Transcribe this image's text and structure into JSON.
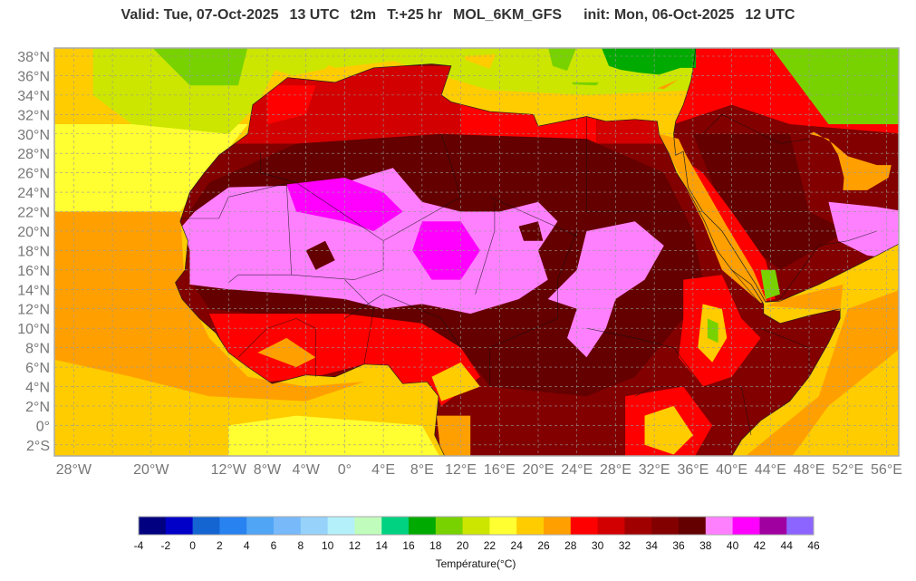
{
  "header": {
    "valid": "Valid: Tue, 07-Oct-2025",
    "hour": "13 UTC",
    "variable": "t2m",
    "lead": "T:+25 hr",
    "model": "MOL_6KM_GFS",
    "init": "init: Mon, 06-Oct-2025",
    "init_hour": "12 UTC"
  },
  "map": {
    "region": "North Africa and Arabia",
    "lat_ticks": [
      {
        "value": 38,
        "label": "38°N"
      },
      {
        "value": 36,
        "label": "36°N"
      },
      {
        "value": 34,
        "label": "34°N"
      },
      {
        "value": 32,
        "label": "32°N"
      },
      {
        "value": 30,
        "label": "30°N"
      },
      {
        "value": 28,
        "label": "28°N"
      },
      {
        "value": 26,
        "label": "26°N"
      },
      {
        "value": 24,
        "label": "24°N"
      },
      {
        "value": 22,
        "label": "22°N"
      },
      {
        "value": 20,
        "label": "20°N"
      },
      {
        "value": 18,
        "label": "18°N"
      },
      {
        "value": 16,
        "label": "16°N"
      },
      {
        "value": 14,
        "label": "14°N"
      },
      {
        "value": 12,
        "label": "12°N"
      },
      {
        "value": 10,
        "label": "10°N"
      },
      {
        "value": 8,
        "label": "8°N"
      },
      {
        "value": 6,
        "label": "6°N"
      },
      {
        "value": 4,
        "label": "4°N"
      },
      {
        "value": 2,
        "label": "2°N"
      },
      {
        "value": 0,
        "label": "0°"
      },
      {
        "value": -2,
        "label": "2°S"
      }
    ],
    "lon_ticks": [
      {
        "value": -28,
        "label": "28°W"
      },
      {
        "value": -20,
        "label": "20°W"
      },
      {
        "value": -12,
        "label": "12°W"
      },
      {
        "value": -8,
        "label": "8°W"
      },
      {
        "value": -4,
        "label": "4°W"
      },
      {
        "value": 0,
        "label": "0°"
      },
      {
        "value": 4,
        "label": "4°E"
      },
      {
        "value": 8,
        "label": "8°E"
      },
      {
        "value": 12,
        "label": "12°E"
      },
      {
        "value": 16,
        "label": "16°E"
      },
      {
        "value": 20,
        "label": "20°E"
      },
      {
        "value": 24,
        "label": "24°E"
      },
      {
        "value": 28,
        "label": "28°E"
      },
      {
        "value": 32,
        "label": "32°E"
      },
      {
        "value": 36,
        "label": "36°E"
      },
      {
        "value": 40,
        "label": "40°E"
      },
      {
        "value": 44,
        "label": "44°E"
      },
      {
        "value": 48,
        "label": "48°E"
      },
      {
        "value": 52,
        "label": "52°E"
      },
      {
        "value": 56,
        "label": "56°E"
      }
    ]
  },
  "colorbar": {
    "label": "Température(°C)",
    "ticks": [
      "-4",
      "-2",
      "0",
      "2",
      "4",
      "6",
      "8",
      "10",
      "12",
      "14",
      "16",
      "18",
      "20",
      "22",
      "24",
      "26",
      "28",
      "30",
      "32",
      "34",
      "36",
      "38",
      "40",
      "42",
      "44",
      "46"
    ],
    "colors": [
      "#000080",
      "#0000c8",
      "#1464d2",
      "#2882f0",
      "#50a5f5",
      "#78b9fa",
      "#96d2fa",
      "#b4f0fa",
      "#c0fcbc",
      "#00d282",
      "#00aa00",
      "#78d200",
      "#cce600",
      "#ffff32",
      "#ffcc00",
      "#ffa000",
      "#ff0000",
      "#d20000",
      "#a00000",
      "#820000",
      "#640000",
      "#ff80ff",
      "#ff00ff",
      "#a000a0",
      "#8c64ff"
    ]
  }
}
